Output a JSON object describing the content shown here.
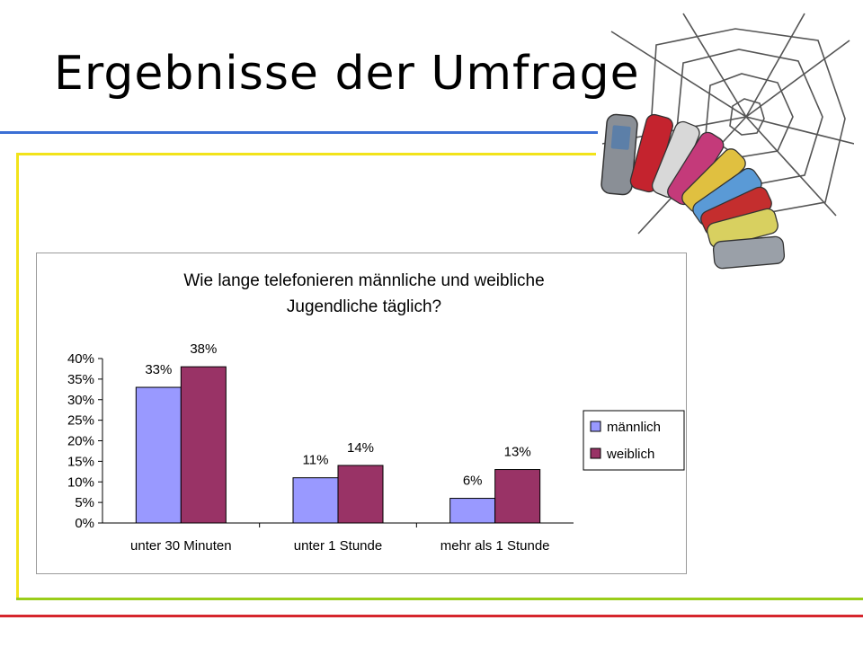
{
  "slide": {
    "title": "Ergebnisse der Umfrage"
  },
  "colors": {
    "blue_rule": "#3b6fd4",
    "yellow_rule": "#f2e31a",
    "green_rule": "#9acd1a",
    "red_rule": "#d6262d",
    "series_maennlich": "#9999ff",
    "series_weiblich": "#993366"
  },
  "chart_data": {
    "type": "bar",
    "title": "Wie lange telefonieren männliche und weibliche Jugendliche täglich?",
    "title_lines": [
      "Wie lange telefonieren männliche und weibliche",
      "Jugendliche täglich?"
    ],
    "categories": [
      "unter 30 Minuten",
      "unter 1 Stunde",
      "mehr als 1 Stunde"
    ],
    "series": [
      {
        "name": "männlich",
        "values": [
          33,
          11,
          6
        ],
        "labels": [
          "33%",
          "11%",
          "6%"
        ],
        "color": "#9999ff"
      },
      {
        "name": "weiblich",
        "values": [
          38,
          14,
          13
        ],
        "labels": [
          "38%",
          "14%",
          "13%"
        ],
        "color": "#993366"
      }
    ],
    "ylim": [
      0,
      40
    ],
    "yticks": [
      "0%",
      "5%",
      "10%",
      "15%",
      "20%",
      "25%",
      "30%",
      "35%",
      "40%"
    ],
    "ytick_values": [
      0,
      5,
      10,
      15,
      20,
      25,
      30,
      35,
      40
    ],
    "legend_position": "right",
    "grid": false
  }
}
